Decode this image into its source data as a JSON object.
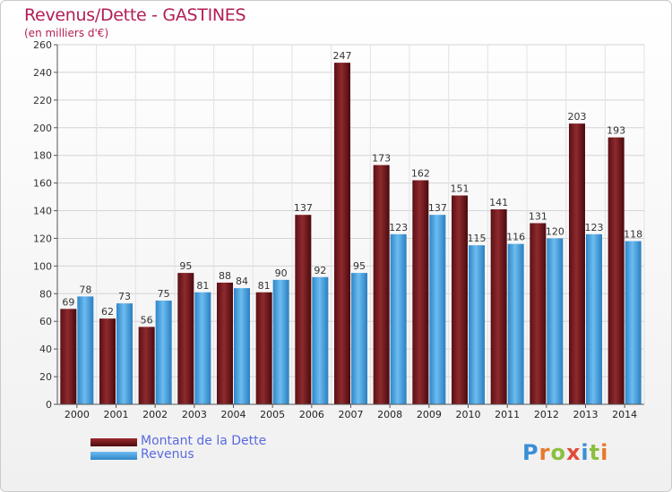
{
  "title": "Revenus/Dette - GASTINES",
  "subtitle": "(en milliers d'€)",
  "colors": {
    "debt": "#7a1b1f",
    "revenue": "#4aa3e0",
    "title": "#b21e56",
    "legend_text": "#5a6adf"
  },
  "legend": {
    "debt_label": "Montant de la Dette",
    "revenue_label": "Revenus"
  },
  "logo": {
    "letters": [
      "P",
      "r",
      "o",
      "x",
      "i",
      "t",
      "i"
    ],
    "colors": [
      "#3a8fd6",
      "#e8792a",
      "#8cbf3f",
      "#e04b3a",
      "#3a8fd6",
      "#8cbf3f",
      "#e8792a"
    ]
  },
  "chart_data": {
    "type": "bar",
    "title": "Revenus/Dette - GASTINES",
    "subtitle": "(en milliers d'€)",
    "categories": [
      "2000",
      "2001",
      "2002",
      "2003",
      "2004",
      "2005",
      "2006",
      "2007",
      "2008",
      "2009",
      "2010",
      "2011",
      "2012",
      "2013",
      "2014"
    ],
    "series": [
      {
        "name": "Montant de la Dette",
        "values": [
          69,
          62,
          56,
          95,
          88,
          81,
          137,
          247,
          173,
          162,
          151,
          141,
          131,
          203,
          193
        ]
      },
      {
        "name": "Revenus",
        "values": [
          78,
          73,
          75,
          81,
          84,
          90,
          92,
          95,
          123,
          137,
          115,
          116,
          120,
          123,
          118
        ]
      }
    ],
    "ylim": [
      0,
      260
    ],
    "yticks": [
      0,
      20,
      40,
      60,
      80,
      100,
      120,
      140,
      160,
      180,
      200,
      220,
      240,
      260
    ],
    "grid": true,
    "legend_position": "bottom-left"
  }
}
